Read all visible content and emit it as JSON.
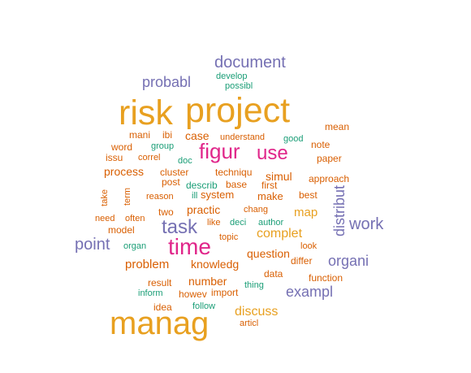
{
  "palette": {
    "orange": "#E8A020",
    "magenta": "#E0268A",
    "purple": "#7570B3",
    "rust": "#D95F02",
    "teal": "#1B9E77"
  },
  "words": [
    {
      "text": "manag",
      "color": "orange",
      "rotate": false
    },
    {
      "text": "project",
      "color": "orange",
      "rotate": false
    },
    {
      "text": "risk",
      "color": "orange",
      "rotate": false
    },
    {
      "text": "time",
      "color": "magenta",
      "rotate": false
    },
    {
      "text": "figur",
      "color": "magenta",
      "rotate": false
    },
    {
      "text": "use",
      "color": "magenta",
      "rotate": false
    },
    {
      "text": "task",
      "color": "purple",
      "rotate": false
    },
    {
      "text": "point",
      "color": "purple",
      "rotate": false
    },
    {
      "text": "work",
      "color": "purple",
      "rotate": false
    },
    {
      "text": "document",
      "color": "purple",
      "rotate": false
    },
    {
      "text": "organi",
      "color": "purple",
      "rotate": false
    },
    {
      "text": "exampl",
      "color": "purple",
      "rotate": false
    },
    {
      "text": "probabl",
      "color": "purple",
      "rotate": false
    },
    {
      "text": "distribut",
      "color": "purple",
      "rotate": true
    },
    {
      "text": "complet",
      "color": "orange",
      "rotate": false
    },
    {
      "text": "discuss",
      "color": "orange",
      "rotate": false
    },
    {
      "text": "map",
      "color": "orange",
      "rotate": false
    },
    {
      "text": "problem",
      "color": "rust",
      "rotate": false
    },
    {
      "text": "knowledg",
      "color": "rust",
      "rotate": false
    },
    {
      "text": "question",
      "color": "rust",
      "rotate": false
    },
    {
      "text": "number",
      "color": "rust",
      "rotate": false
    },
    {
      "text": "practic",
      "color": "rust",
      "rotate": false
    },
    {
      "text": "system",
      "color": "rust",
      "rotate": false
    },
    {
      "text": "make",
      "color": "rust",
      "rotate": false
    },
    {
      "text": "simul",
      "color": "rust",
      "rotate": false
    },
    {
      "text": "case",
      "color": "rust",
      "rotate": false
    },
    {
      "text": "process",
      "color": "rust",
      "rotate": false
    },
    {
      "text": "note",
      "color": "rust",
      "rotate": false
    },
    {
      "text": "result",
      "color": "rust",
      "rotate": false
    },
    {
      "text": "issu",
      "color": "rust",
      "rotate": false
    },
    {
      "text": "word",
      "color": "rust",
      "rotate": false
    },
    {
      "text": "mani",
      "color": "rust",
      "rotate": false
    },
    {
      "text": "ibi",
      "color": "rust",
      "rotate": false
    },
    {
      "text": "post",
      "color": "rust",
      "rotate": false
    },
    {
      "text": "techniqu",
      "color": "rust",
      "rotate": false
    },
    {
      "text": "understand",
      "color": "rust",
      "rotate": false
    },
    {
      "text": "paper",
      "color": "rust",
      "rotate": false
    },
    {
      "text": "mean",
      "color": "rust",
      "rotate": false
    },
    {
      "text": "data",
      "color": "rust",
      "rotate": false
    },
    {
      "text": "differ",
      "color": "rust",
      "rotate": false
    },
    {
      "text": "function",
      "color": "rust",
      "rotate": false
    },
    {
      "text": "two",
      "color": "rust",
      "rotate": false
    },
    {
      "text": "model",
      "color": "rust",
      "rotate": false
    },
    {
      "text": "base",
      "color": "rust",
      "rotate": false
    },
    {
      "text": "first",
      "color": "rust",
      "rotate": false
    },
    {
      "text": "best",
      "color": "rust",
      "rotate": false
    },
    {
      "text": "approach",
      "color": "rust",
      "rotate": false
    },
    {
      "text": "cluster",
      "color": "rust",
      "rotate": false
    },
    {
      "text": "correl",
      "color": "rust",
      "rotate": false
    },
    {
      "text": "reason",
      "color": "rust",
      "rotate": false
    },
    {
      "text": "need",
      "color": "rust",
      "rotate": false
    },
    {
      "text": "often",
      "color": "rust",
      "rotate": false
    },
    {
      "text": "like",
      "color": "rust",
      "rotate": false
    },
    {
      "text": "chang",
      "color": "rust",
      "rotate": false
    },
    {
      "text": "topic",
      "color": "rust",
      "rotate": false
    },
    {
      "text": "look",
      "color": "rust",
      "rotate": false
    },
    {
      "text": "howev",
      "color": "rust",
      "rotate": false
    },
    {
      "text": "import",
      "color": "rust",
      "rotate": false
    },
    {
      "text": "idea",
      "color": "rust",
      "rotate": false
    },
    {
      "text": "articl",
      "color": "rust",
      "rotate": false
    },
    {
      "text": "term",
      "color": "rust",
      "rotate": true
    },
    {
      "text": "take",
      "color": "rust",
      "rotate": true
    },
    {
      "text": "develop",
      "color": "teal",
      "rotate": false
    },
    {
      "text": "possibl",
      "color": "teal",
      "rotate": false
    },
    {
      "text": "good",
      "color": "teal",
      "rotate": false
    },
    {
      "text": "group",
      "color": "teal",
      "rotate": false
    },
    {
      "text": "doc",
      "color": "teal",
      "rotate": false
    },
    {
      "text": "describ",
      "color": "teal",
      "rotate": false
    },
    {
      "text": "ill",
      "color": "teal",
      "rotate": false
    },
    {
      "text": "deci",
      "color": "teal",
      "rotate": false
    },
    {
      "text": "author",
      "color": "teal",
      "rotate": false
    },
    {
      "text": "organ",
      "color": "teal",
      "rotate": false
    },
    {
      "text": "thing",
      "color": "teal",
      "rotate": false
    },
    {
      "text": "inform",
      "color": "teal",
      "rotate": false
    },
    {
      "text": "follow",
      "color": "teal",
      "rotate": false
    }
  ]
}
